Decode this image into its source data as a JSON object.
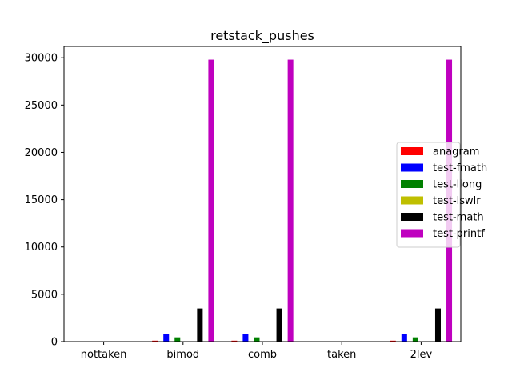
{
  "chart_data": {
    "type": "bar",
    "title": "retstack_pushes",
    "xlabel": "",
    "ylabel": "",
    "ylim": [
      0,
      31200
    ],
    "yticks": [
      0,
      5000,
      10000,
      15000,
      20000,
      25000,
      30000
    ],
    "categories": [
      "nottaken",
      "bimod",
      "comb",
      "taken",
      "2lev"
    ],
    "legend_position": "center-right",
    "grid": false,
    "series": [
      {
        "name": "anagram",
        "color": "#ff0000",
        "values": [
          0,
          100,
          100,
          0,
          100
        ]
      },
      {
        "name": "test-fmath",
        "color": "#0000ff",
        "values": [
          0,
          800,
          800,
          0,
          800
        ]
      },
      {
        "name": "test-llong",
        "color": "#008000",
        "values": [
          0,
          450,
          450,
          0,
          450
        ]
      },
      {
        "name": "test-lswlr",
        "color": "#bfbf00",
        "values": [
          0,
          30,
          30,
          0,
          30
        ]
      },
      {
        "name": "test-math",
        "color": "#000000",
        "values": [
          0,
          3500,
          3500,
          0,
          3500
        ]
      },
      {
        "name": "test-printf",
        "color": "#bf00bf",
        "values": [
          0,
          29800,
          29800,
          0,
          29800
        ]
      }
    ]
  }
}
